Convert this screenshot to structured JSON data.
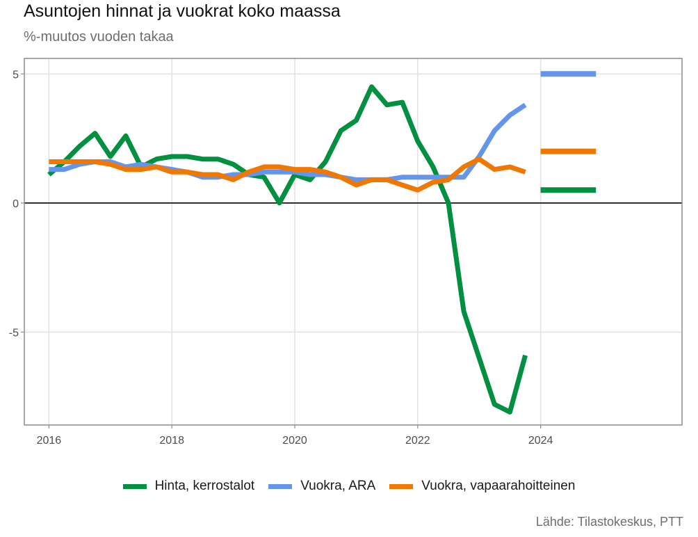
{
  "title": "Asuntojen hinnat ja vuokrat koko maassa",
  "subtitle": "%-muutos vuoden takaa",
  "source": "Lähde: Tilastokeskus, PTT",
  "chart_data": {
    "type": "line",
    "title": "Asuntojen hinnat ja vuokrat koko maassa",
    "subtitle": "%-muutos vuoden takaa",
    "xlabel": "",
    "ylabel": "",
    "x": [
      2016.0,
      2016.25,
      2016.5,
      2016.75,
      2017.0,
      2017.25,
      2017.5,
      2017.75,
      2018.0,
      2018.25,
      2018.5,
      2018.75,
      2019.0,
      2019.25,
      2019.5,
      2019.75,
      2020.0,
      2020.25,
      2020.5,
      2020.75,
      2021.0,
      2021.25,
      2021.5,
      2021.75,
      2022.0,
      2022.25,
      2022.5,
      2022.75,
      2023.0,
      2023.25,
      2023.5,
      2023.75
    ],
    "xlim": [
      2015.6,
      2026.3
    ],
    "ylim": [
      -8.6,
      5.6
    ],
    "xticks": [
      2016,
      2018,
      2020,
      2022,
      2024
    ],
    "xtick_labels": [
      "2016",
      "2018",
      "2020",
      "2022",
      "2024"
    ],
    "yticks": [
      5,
      0,
      -5
    ],
    "ytick_labels": [
      "5",
      "0",
      "-5"
    ],
    "grid": true,
    "zero_line": true,
    "legend_position": "bottom",
    "series": [
      {
        "name": "Hinta, kerrostalot",
        "color": "#009040",
        "values": [
          1.1,
          1.6,
          2.2,
          2.7,
          1.8,
          2.6,
          1.4,
          1.7,
          1.8,
          1.8,
          1.7,
          1.7,
          1.5,
          1.1,
          1.0,
          0.0,
          1.1,
          0.9,
          1.6,
          2.8,
          3.2,
          4.5,
          3.8,
          3.9,
          2.4,
          1.4,
          0.0,
          -4.2,
          -6.0,
          -7.8,
          -8.1,
          -5.9
        ],
        "end_marker": 0.5
      },
      {
        "name": "Vuokra, ARA",
        "color": "#6495ed",
        "values": [
          1.3,
          1.3,
          1.5,
          1.6,
          1.6,
          1.4,
          1.5,
          1.4,
          1.3,
          1.2,
          1.0,
          1.0,
          1.1,
          1.1,
          1.2,
          1.2,
          1.2,
          1.1,
          1.1,
          1.0,
          0.9,
          0.9,
          0.9,
          1.0,
          1.0,
          1.0,
          1.0,
          1.0,
          1.8,
          2.8,
          3.4,
          3.8
        ],
        "end_marker": 5.0
      },
      {
        "name": "Vuokra, vapaarahoitteinen",
        "color": "#f07800",
        "values": [
          1.6,
          1.6,
          1.6,
          1.6,
          1.5,
          1.3,
          1.3,
          1.4,
          1.2,
          1.2,
          1.1,
          1.1,
          0.9,
          1.2,
          1.4,
          1.4,
          1.3,
          1.3,
          1.2,
          1.0,
          0.7,
          0.9,
          0.9,
          0.7,
          0.5,
          0.8,
          0.9,
          1.4,
          1.7,
          1.3,
          1.4,
          1.2
        ],
        "end_marker": 2.0
      }
    ],
    "end_markers_x": [
      2024.0,
      2024.9
    ]
  }
}
